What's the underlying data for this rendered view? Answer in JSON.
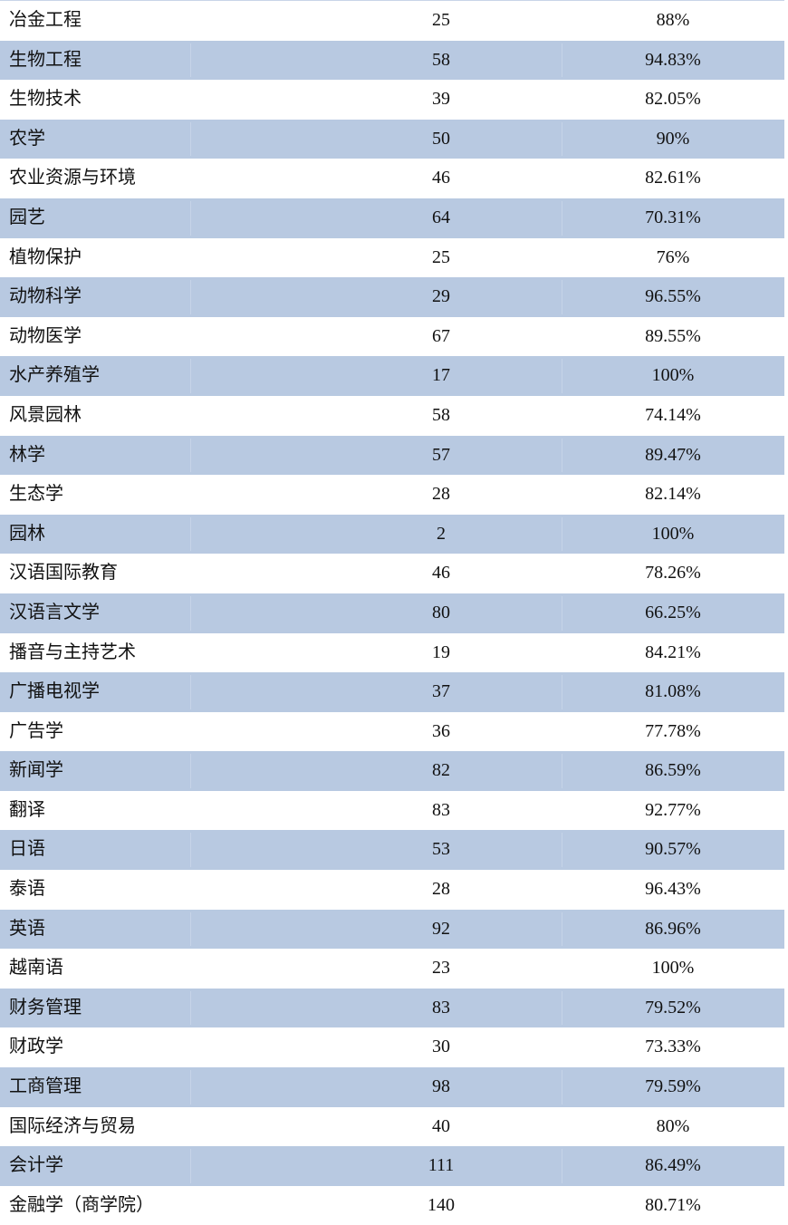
{
  "colors": {
    "band": "#b8c9e1"
  },
  "rows": [
    [
      "冶金工程",
      "25",
      "88%"
    ],
    [
      "生物工程",
      "58",
      "94.83%"
    ],
    [
      "生物技术",
      "39",
      "82.05%"
    ],
    [
      "农学",
      "50",
      "90%"
    ],
    [
      "农业资源与环境",
      "46",
      "82.61%"
    ],
    [
      "园艺",
      "64",
      "70.31%"
    ],
    [
      "植物保护",
      "25",
      "76%"
    ],
    [
      "动物科学",
      "29",
      "96.55%"
    ],
    [
      "动物医学",
      "67",
      "89.55%"
    ],
    [
      "水产养殖学",
      "17",
      "100%"
    ],
    [
      "风景园林",
      "58",
      "74.14%"
    ],
    [
      "林学",
      "57",
      "89.47%"
    ],
    [
      "生态学",
      "28",
      "82.14%"
    ],
    [
      "园林",
      "2",
      "100%"
    ],
    [
      "汉语国际教育",
      "46",
      "78.26%"
    ],
    [
      "汉语言文学",
      "80",
      "66.25%"
    ],
    [
      "播音与主持艺术",
      "19",
      "84.21%"
    ],
    [
      "广播电视学",
      "37",
      "81.08%"
    ],
    [
      "广告学",
      "36",
      "77.78%"
    ],
    [
      "新闻学",
      "82",
      "86.59%"
    ],
    [
      "翻译",
      "83",
      "92.77%"
    ],
    [
      "日语",
      "53",
      "90.57%"
    ],
    [
      "泰语",
      "28",
      "96.43%"
    ],
    [
      "英语",
      "92",
      "86.96%"
    ],
    [
      "越南语",
      "23",
      "100%"
    ],
    [
      "财务管理",
      "83",
      "79.52%"
    ],
    [
      "财政学",
      "30",
      "73.33%"
    ],
    [
      "工商管理",
      "98",
      "79.59%"
    ],
    [
      "国际经济与贸易",
      "40",
      "80%"
    ],
    [
      "会计学",
      "111",
      "86.49%"
    ],
    [
      "金融学（商学院）",
      "140",
      "80.71%"
    ]
  ]
}
